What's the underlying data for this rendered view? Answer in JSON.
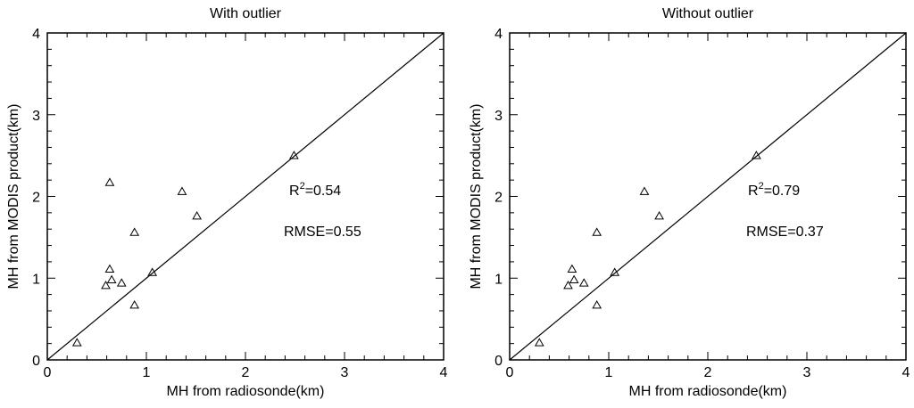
{
  "chart_data": [
    {
      "type": "scatter",
      "title": "With outlier",
      "xlabel": "MH from radiosonde(km)",
      "ylabel": "MH from MODIS product(km)",
      "xlim": [
        0,
        4
      ],
      "ylim": [
        0,
        4
      ],
      "xticks": [
        0,
        1,
        2,
        3,
        4
      ],
      "yticks": [
        0,
        1,
        2,
        3,
        4
      ],
      "grid": false,
      "marker": "open-triangle",
      "reference_line": "1:1",
      "points": [
        {
          "x": 0.3,
          "y": 0.21
        },
        {
          "x": 0.59,
          "y": 0.91
        },
        {
          "x": 0.63,
          "y": 1.11
        },
        {
          "x": 0.63,
          "y": 2.17
        },
        {
          "x": 0.65,
          "y": 0.98
        },
        {
          "x": 0.75,
          "y": 0.94
        },
        {
          "x": 0.88,
          "y": 1.56
        },
        {
          "x": 0.88,
          "y": 0.67
        },
        {
          "x": 1.06,
          "y": 1.07
        },
        {
          "x": 1.36,
          "y": 2.06
        },
        {
          "x": 1.51,
          "y": 1.76
        },
        {
          "x": 2.49,
          "y": 2.5
        }
      ],
      "annotations": {
        "r2_prefix": "R",
        "r2_sup": "2",
        "r2_value": "=0.54",
        "rmse": "RMSE=0.55"
      }
    },
    {
      "type": "scatter",
      "title": "Without outlier",
      "xlabel": "MH from radiosonde(km)",
      "ylabel": "MH from MODIS product(km)",
      "xlim": [
        0,
        4
      ],
      "ylim": [
        0,
        4
      ],
      "xticks": [
        0,
        1,
        2,
        3,
        4
      ],
      "yticks": [
        0,
        1,
        2,
        3,
        4
      ],
      "grid": false,
      "marker": "open-triangle",
      "reference_line": "1:1",
      "points": [
        {
          "x": 0.3,
          "y": 0.21
        },
        {
          "x": 0.59,
          "y": 0.91
        },
        {
          "x": 0.63,
          "y": 1.11
        },
        {
          "x": 0.65,
          "y": 0.98
        },
        {
          "x": 0.75,
          "y": 0.94
        },
        {
          "x": 0.88,
          "y": 1.56
        },
        {
          "x": 0.88,
          "y": 0.67
        },
        {
          "x": 1.06,
          "y": 1.07
        },
        {
          "x": 1.36,
          "y": 2.06
        },
        {
          "x": 1.51,
          "y": 1.76
        },
        {
          "x": 2.49,
          "y": 2.5
        }
      ],
      "annotations": {
        "r2_prefix": "R",
        "r2_sup": "2",
        "r2_value": "=0.79",
        "rmse": "RMSE=0.37"
      }
    }
  ]
}
